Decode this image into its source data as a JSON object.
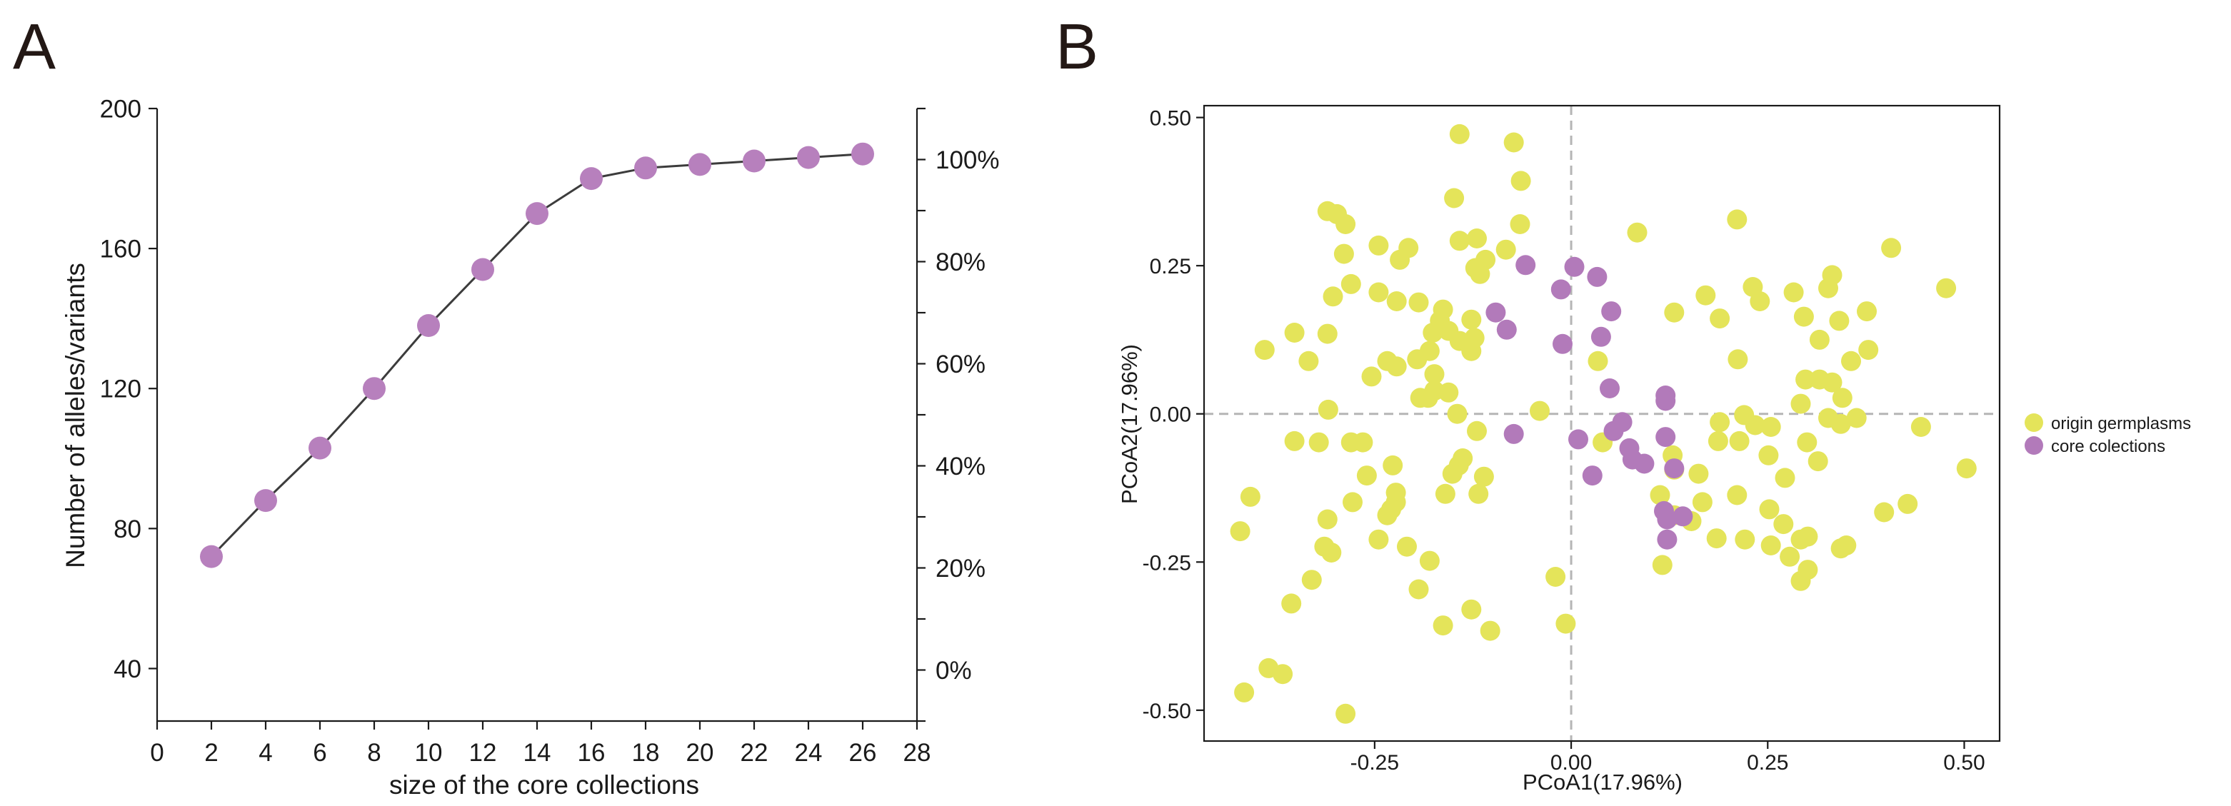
{
  "chart_data": [
    {
      "type": "line",
      "panel_label": "A",
      "xlabel": "size of the core collections",
      "ylabel": "Number of alleles/variants",
      "xlim": [
        0,
        28
      ],
      "ylim": [
        25,
        200
      ],
      "xticks": [
        0,
        2,
        4,
        6,
        8,
        10,
        12,
        14,
        16,
        18,
        20,
        22,
        24,
        26,
        28
      ],
      "xtick_labels": [
        "0",
        "2",
        "4",
        "6",
        "8",
        "10",
        "12",
        "14",
        "16",
        "18",
        "20",
        "22",
        "24",
        "26",
        "28"
      ],
      "yticks": [
        200,
        160,
        120,
        80,
        40
      ],
      "ytick_labels": [
        "200",
        "160",
        "120",
        "80",
        "40"
      ],
      "secondary_ylim": [
        -10,
        110
      ],
      "secondary_yticks": [
        100,
        80,
        60,
        40,
        20,
        0
      ],
      "secondary_ytick_labels": [
        "100%",
        "80%",
        "60%",
        "40%",
        "20%",
        "0%"
      ],
      "secondary_minor_ticks": [
        110,
        90,
        70,
        50,
        30,
        10,
        -10
      ],
      "x": [
        2,
        4,
        6,
        8,
        10,
        12,
        14,
        16,
        18,
        20,
        22,
        24,
        26
      ],
      "values": [
        72,
        88,
        103,
        120,
        138,
        154,
        170,
        180,
        183,
        184,
        185,
        186,
        187
      ],
      "marker_color": "#b780bd",
      "line_color": "#3c3c3c"
    },
    {
      "type": "scatter",
      "panel_label": "B",
      "xlabel": "PCoA1(17.96%)",
      "ylabel": "PCoA2(17.96%)",
      "xlim": [
        -0.467,
        0.545
      ],
      "ylim": [
        -0.552,
        0.52
      ],
      "xticks": [
        -0.25,
        0,
        0.25,
        0.5
      ],
      "xtick_labels": [
        "-0.25",
        "0.00",
        "0.25",
        "0.50"
      ],
      "yticks": [
        0.5,
        0.25,
        0,
        -0.25,
        -0.5
      ],
      "ytick_labels": [
        "0.50",
        "0.25",
        "0.00",
        "-0.25",
        "-0.50"
      ],
      "reference_lines": {
        "x": 0,
        "y": 0
      },
      "legend_position": "right",
      "series": [
        {
          "name": "origin germplasms",
          "color": "#e4e45a",
          "points": [
            [
              -0.142,
              0.472
            ],
            [
              -0.073,
              0.458
            ],
            [
              -0.064,
              0.393
            ],
            [
              -0.149,
              0.364
            ],
            [
              -0.31,
              0.342
            ],
            [
              -0.298,
              0.337
            ],
            [
              -0.287,
              0.32
            ],
            [
              -0.065,
              0.32
            ],
            [
              -0.12,
              0.296
            ],
            [
              -0.142,
              0.292
            ],
            [
              0.084,
              0.306
            ],
            [
              0.211,
              0.328
            ],
            [
              -0.245,
              0.284
            ],
            [
              -0.207,
              0.28
            ],
            [
              -0.289,
              0.27
            ],
            [
              -0.083,
              0.277
            ],
            [
              -0.109,
              0.26
            ],
            [
              -0.122,
              0.246
            ],
            [
              -0.116,
              0.236
            ],
            [
              -0.218,
              0.26
            ],
            [
              0.407,
              0.28
            ],
            [
              -0.28,
              0.219
            ],
            [
              -0.303,
              0.198
            ],
            [
              -0.245,
              0.205
            ],
            [
              -0.222,
              0.19
            ],
            [
              -0.194,
              0.188
            ],
            [
              0.332,
              0.234
            ],
            [
              0.327,
              0.212
            ],
            [
              0.477,
              0.212
            ],
            [
              0.171,
              0.2
            ],
            [
              0.231,
              0.214
            ],
            [
              0.24,
              0.19
            ],
            [
              0.283,
              0.205
            ],
            [
              -0.163,
              0.176
            ],
            [
              -0.167,
              0.157
            ],
            [
              -0.127,
              0.159
            ],
            [
              -0.156,
              0.14
            ],
            [
              -0.176,
              0.137
            ],
            [
              -0.142,
              0.123
            ],
            [
              -0.127,
              0.106
            ],
            [
              -0.123,
              0.128
            ],
            [
              0.131,
              0.171
            ],
            [
              0.189,
              0.161
            ],
            [
              0.296,
              0.164
            ],
            [
              0.341,
              0.157
            ],
            [
              0.376,
              0.173
            ],
            [
              0.316,
              0.125
            ],
            [
              0.378,
              0.108
            ],
            [
              0.356,
              0.089
            ],
            [
              -0.31,
              0.135
            ],
            [
              -0.352,
              0.137
            ],
            [
              -0.39,
              0.108
            ],
            [
              -0.334,
              0.089
            ],
            [
              -0.234,
              0.089
            ],
            [
              -0.222,
              0.08
            ],
            [
              -0.18,
              0.106
            ],
            [
              -0.196,
              0.092
            ],
            [
              -0.254,
              0.063
            ],
            [
              -0.174,
              0.067
            ],
            [
              0.212,
              0.092
            ],
            [
              0.298,
              0.058
            ],
            [
              0.316,
              0.058
            ],
            [
              0.332,
              0.053
            ],
            [
              0.345,
              0.027
            ],
            [
              -0.174,
              0.039
            ],
            [
              -0.156,
              0.036
            ],
            [
              -0.192,
              0.027
            ],
            [
              -0.182,
              0.027
            ],
            [
              -0.04,
              0.005
            ],
            [
              -0.309,
              0.007
            ],
            [
              -0.145,
              0.0
            ],
            [
              0.292,
              0.017
            ],
            [
              0.22,
              -0.002
            ],
            [
              0.327,
              -0.007
            ],
            [
              0.363,
              -0.007
            ],
            [
              0.343,
              -0.017
            ],
            [
              0.445,
              -0.022
            ],
            [
              0.189,
              -0.014
            ],
            [
              0.234,
              -0.019
            ],
            [
              0.254,
              -0.022
            ],
            [
              0.187,
              -0.046
            ],
            [
              0.214,
              -0.046
            ],
            [
              0.3,
              -0.048
            ],
            [
              0.251,
              -0.07
            ],
            [
              0.314,
              -0.08
            ],
            [
              0.503,
              -0.092
            ],
            [
              0.129,
              -0.07
            ],
            [
              0.131,
              -0.094
            ],
            [
              0.162,
              -0.101
            ],
            [
              0.272,
              -0.108
            ],
            [
              0.113,
              -0.137
            ],
            [
              0.211,
              -0.137
            ],
            [
              0.252,
              -0.161
            ],
            [
              0.167,
              -0.149
            ],
            [
              0.153,
              -0.181
            ],
            [
              0.131,
              -0.171
            ],
            [
              0.428,
              -0.152
            ],
            [
              0.398,
              -0.166
            ],
            [
              0.27,
              -0.186
            ],
            [
              0.185,
              -0.21
            ],
            [
              0.221,
              -0.212
            ],
            [
              0.254,
              -0.222
            ],
            [
              0.292,
              -0.212
            ],
            [
              0.301,
              -0.207
            ],
            [
              0.35,
              -0.222
            ],
            [
              0.343,
              -0.227
            ],
            [
              0.278,
              -0.241
            ],
            [
              0.301,
              -0.263
            ],
            [
              0.292,
              -0.282
            ],
            [
              0.116,
              -0.255
            ],
            [
              -0.352,
              -0.046
            ],
            [
              -0.321,
              -0.048
            ],
            [
              -0.28,
              -0.048
            ],
            [
              -0.265,
              -0.048
            ],
            [
              -0.12,
              -0.029
            ],
            [
              -0.138,
              -0.075
            ],
            [
              -0.143,
              -0.087
            ],
            [
              -0.151,
              -0.101
            ],
            [
              -0.111,
              -0.106
            ],
            [
              -0.227,
              -0.087
            ],
            [
              -0.26,
              -0.104
            ],
            [
              -0.223,
              -0.133
            ],
            [
              -0.16,
              -0.135
            ],
            [
              -0.118,
              -0.135
            ],
            [
              -0.278,
              -0.149
            ],
            [
              -0.223,
              -0.149
            ],
            [
              -0.229,
              -0.161
            ],
            [
              -0.234,
              -0.171
            ],
            [
              -0.408,
              -0.14
            ],
            [
              -0.31,
              -0.178
            ],
            [
              -0.421,
              -0.198
            ],
            [
              -0.245,
              -0.212
            ],
            [
              -0.314,
              -0.224
            ],
            [
              -0.305,
              -0.234
            ],
            [
              -0.209,
              -0.224
            ],
            [
              -0.18,
              -0.248
            ],
            [
              -0.33,
              -0.28
            ],
            [
              -0.194,
              -0.296
            ],
            [
              -0.356,
              -0.32
            ],
            [
              -0.127,
              -0.33
            ],
            [
              -0.163,
              -0.357
            ],
            [
              -0.103,
              -0.366
            ],
            [
              -0.007,
              -0.354
            ],
            [
              -0.02,
              -0.275
            ],
            [
              -0.385,
              -0.429
            ],
            [
              -0.367,
              -0.439
            ],
            [
              -0.416,
              -0.47
            ],
            [
              -0.287,
              -0.506
            ],
            [
              0.04,
              -0.048
            ],
            [
              0.034,
              0.089
            ]
          ]
        },
        {
          "name": "core colections",
          "color": "#b27aba",
          "points": [
            [
              -0.058,
              0.251
            ],
            [
              0.004,
              0.248
            ],
            [
              0.033,
              0.231
            ],
            [
              -0.013,
              0.21
            ],
            [
              0.051,
              0.173
            ],
            [
              -0.096,
              0.171
            ],
            [
              -0.082,
              0.142
            ],
            [
              0.038,
              0.13
            ],
            [
              -0.011,
              0.118
            ],
            [
              0.049,
              0.043
            ],
            [
              0.12,
              0.031
            ],
            [
              0.12,
              0.022
            ],
            [
              0.065,
              -0.014
            ],
            [
              0.054,
              -0.029
            ],
            [
              -0.073,
              -0.034
            ],
            [
              0.009,
              -0.043
            ],
            [
              0.12,
              -0.039
            ],
            [
              0.074,
              -0.058
            ],
            [
              0.078,
              -0.077
            ],
            [
              0.093,
              -0.084
            ],
            [
              0.131,
              -0.092
            ],
            [
              0.027,
              -0.104
            ],
            [
              0.118,
              -0.164
            ],
            [
              0.122,
              -0.178
            ],
            [
              0.142,
              -0.173
            ],
            [
              0.122,
              -0.212
            ]
          ]
        }
      ]
    }
  ]
}
